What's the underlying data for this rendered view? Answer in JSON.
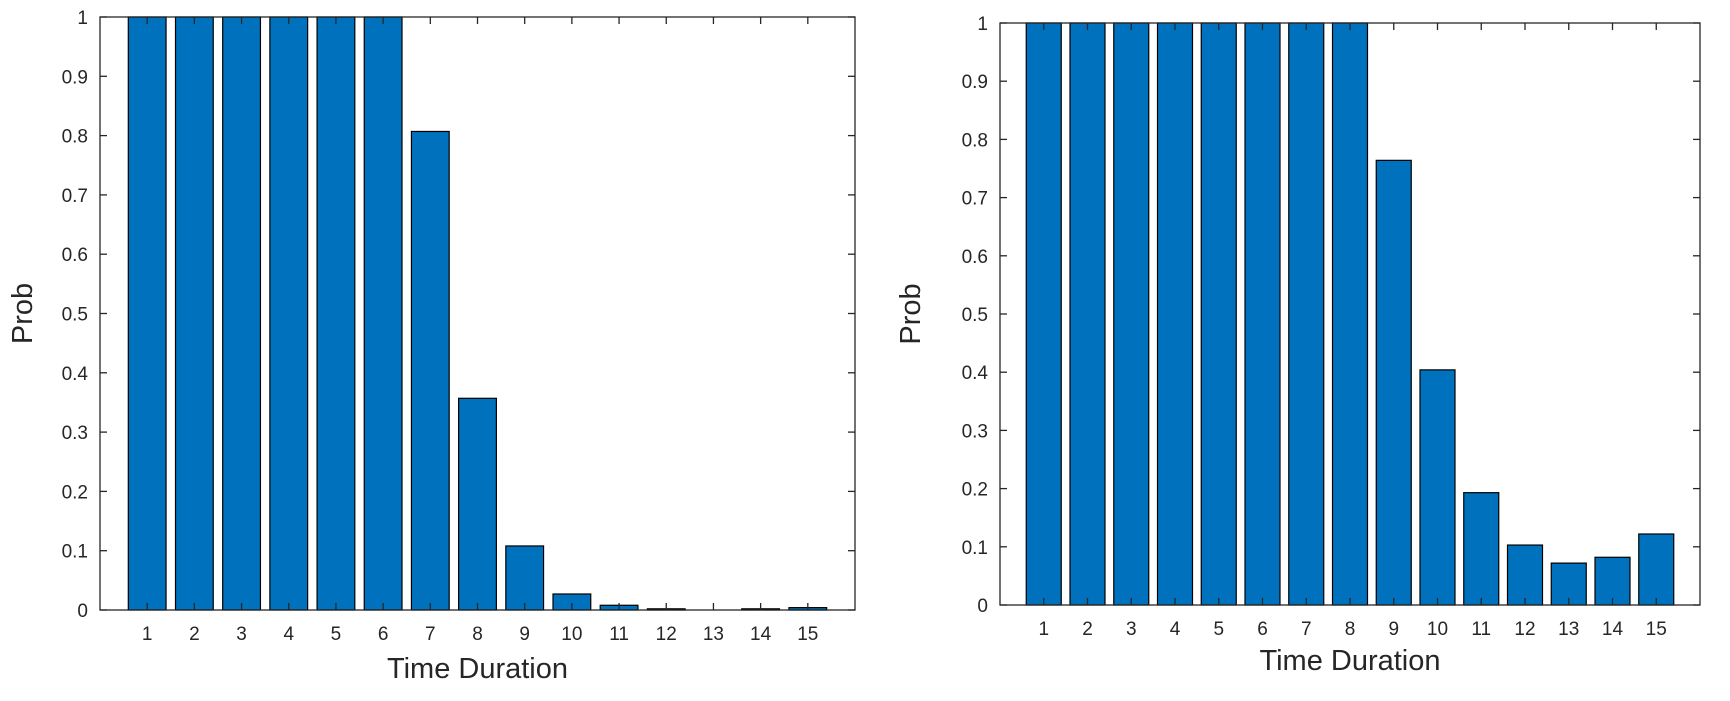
{
  "chart_data": [
    {
      "type": "bar",
      "categories": [
        "1",
        "2",
        "3",
        "4",
        "5",
        "6",
        "7",
        "8",
        "9",
        "10",
        "11",
        "12",
        "13",
        "14",
        "15"
      ],
      "values": [
        1,
        1,
        1,
        1,
        1,
        1,
        0.807,
        0.357,
        0.108,
        0.027,
        0.008,
        0.002,
        0.0,
        0.002,
        0.004
      ],
      "xlabel": "Time Duration",
      "ylabel": "Prob",
      "ylim": [
        0,
        1
      ],
      "yticks": [
        "0",
        "0.1",
        "0.2",
        "0.3",
        "0.4",
        "0.5",
        "0.6",
        "0.7",
        "0.8",
        "0.9",
        "1"
      ],
      "bar_color": "#0072bd",
      "grid": false
    },
    {
      "type": "bar",
      "categories": [
        "1",
        "2",
        "3",
        "4",
        "5",
        "6",
        "7",
        "8",
        "9",
        "10",
        "11",
        "12",
        "13",
        "14",
        "15"
      ],
      "values": [
        1,
        1,
        1,
        1,
        1,
        1,
        1,
        1,
        0.764,
        0.404,
        0.193,
        0.103,
        0.072,
        0.082,
        0.122
      ],
      "xlabel": "Time Duration",
      "ylabel": "Prob",
      "ylim": [
        0,
        1
      ],
      "yticks": [
        "0",
        "0.1",
        "0.2",
        "0.3",
        "0.4",
        "0.5",
        "0.6",
        "0.7",
        "0.8",
        "0.9",
        "1"
      ],
      "bar_color": "#0072bd",
      "grid": false
    }
  ]
}
